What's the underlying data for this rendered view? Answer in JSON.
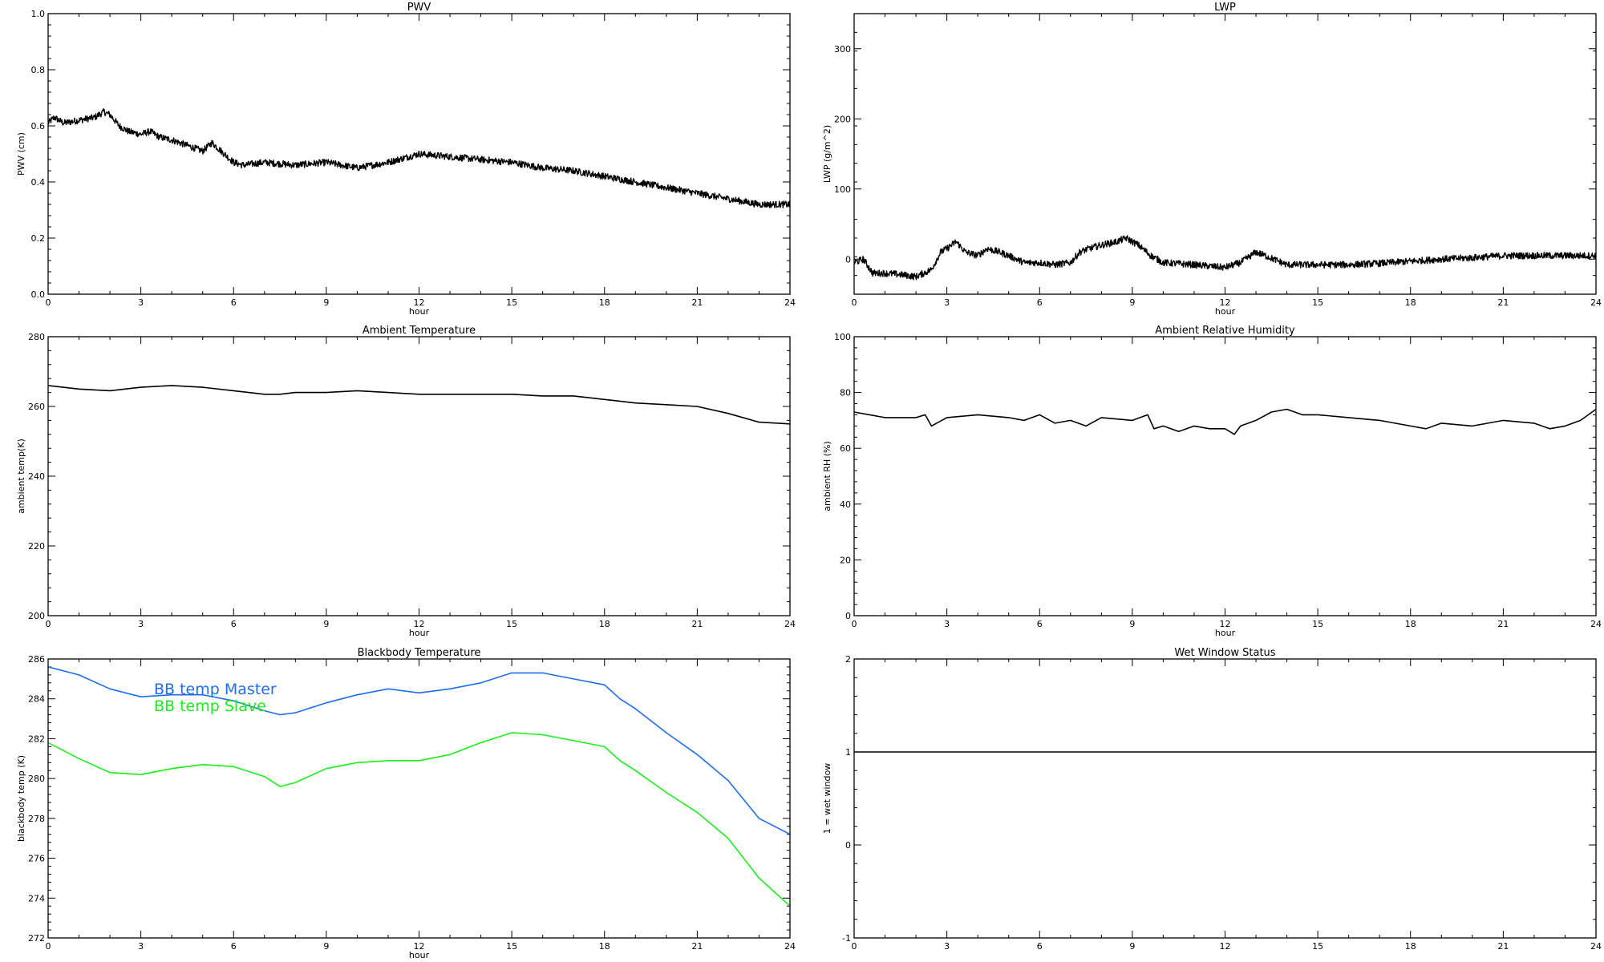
{
  "chart_data": [
    {
      "type": "line",
      "title": "PWV",
      "xlabel": "hour",
      "ylabel": "PWV (cm)",
      "xlim": [
        0,
        24
      ],
      "ylim": [
        0.0,
        1.0
      ],
      "xticks": [
        "0",
        "3",
        "6",
        "9",
        "12",
        "15",
        "18",
        "21",
        "24"
      ],
      "yticks": [
        "0.0",
        "0.2",
        "0.4",
        "0.6",
        "0.8",
        "1.0"
      ],
      "noisy": true,
      "series": [
        {
          "name": "",
          "color": "#000000",
          "x": [
            0,
            0.2,
            0.5,
            1.0,
            1.5,
            1.8,
            2.0,
            2.3,
            2.6,
            3.0,
            3.3,
            3.6,
            4.0,
            4.5,
            5.0,
            5.3,
            5.7,
            6.0,
            6.3,
            7.0,
            8.0,
            9.0,
            10.0,
            11.0,
            12.0,
            13.0,
            14.0,
            15.0,
            16.0,
            17.0,
            17.5,
            18.0,
            19.0,
            20.0,
            21.0,
            22.0,
            23.0,
            24.0
          ],
          "y": [
            0.61,
            0.63,
            0.61,
            0.62,
            0.63,
            0.65,
            0.64,
            0.6,
            0.58,
            0.57,
            0.58,
            0.56,
            0.55,
            0.53,
            0.51,
            0.54,
            0.5,
            0.47,
            0.46,
            0.47,
            0.46,
            0.47,
            0.45,
            0.47,
            0.5,
            0.49,
            0.48,
            0.47,
            0.45,
            0.44,
            0.43,
            0.42,
            0.4,
            0.38,
            0.36,
            0.34,
            0.32,
            0.32
          ]
        }
      ]
    },
    {
      "type": "line",
      "title": "LWP",
      "xlabel": "hour",
      "ylabel": "LWP (g/m^2)",
      "xlim": [
        0,
        24
      ],
      "ylim": [
        -50,
        350
      ],
      "xticks": [
        "0",
        "3",
        "6",
        "9",
        "12",
        "15",
        "18",
        "21",
        "24"
      ],
      "yticks": [
        "0",
        "100",
        "200",
        "300"
      ],
      "noisy": true,
      "series": [
        {
          "name": "",
          "color": "#000000",
          "x": [
            0,
            0.3,
            0.6,
            1.0,
            1.5,
            2.0,
            2.5,
            2.8,
            3.0,
            3.3,
            3.6,
            4.0,
            4.3,
            4.7,
            5.0,
            5.5,
            6.0,
            6.5,
            7.0,
            7.3,
            7.6,
            8.0,
            8.5,
            8.8,
            9.2,
            9.6,
            10.0,
            11.0,
            12.0,
            12.5,
            13.0,
            13.3,
            14.0,
            15.0,
            16.0,
            17.0,
            18.0,
            19.0,
            20.0,
            21.0,
            22.0,
            23.0,
            24.0
          ],
          "y": [
            -5,
            0,
            -20,
            -20,
            -22,
            -25,
            -15,
            10,
            15,
            25,
            10,
            5,
            15,
            10,
            5,
            -5,
            -5,
            -8,
            -5,
            10,
            15,
            20,
            25,
            30,
            20,
            5,
            -5,
            -8,
            -12,
            -5,
            10,
            5,
            -8,
            -8,
            -8,
            -6,
            -3,
            0,
            2,
            5,
            5,
            5,
            5
          ]
        }
      ]
    },
    {
      "type": "line",
      "title": "Ambient Temperature",
      "xlabel": "hour",
      "ylabel": "ambient temp(K)",
      "xlim": [
        0,
        24
      ],
      "ylim": [
        200,
        280
      ],
      "xticks": [
        "0",
        "3",
        "6",
        "9",
        "12",
        "15",
        "18",
        "21",
        "24"
      ],
      "yticks": [
        "200",
        "220",
        "240",
        "260",
        "280"
      ],
      "noisy": false,
      "series": [
        {
          "name": "",
          "color": "#000000",
          "x": [
            0,
            1.0,
            2.0,
            3.0,
            4.0,
            5.0,
            6.0,
            7.0,
            7.5,
            8.0,
            9.0,
            10.0,
            11.0,
            12.0,
            13.0,
            14.0,
            15.0,
            16.0,
            17.0,
            18.0,
            19.0,
            20.0,
            21.0,
            22.0,
            23.0,
            24.0
          ],
          "y": [
            266,
            265,
            264.5,
            265.5,
            266,
            265.5,
            264.5,
            263.5,
            263.5,
            264,
            264,
            264.5,
            264,
            263.5,
            263.5,
            263.5,
            263.5,
            263,
            263,
            262,
            261,
            260.5,
            260,
            258,
            255.5,
            255
          ]
        }
      ]
    },
    {
      "type": "line",
      "title": "Ambient Relative Humidity",
      "xlabel": "hour",
      "ylabel": "ambient RH (%)",
      "xlim": [
        0,
        24
      ],
      "ylim": [
        0,
        100
      ],
      "xticks": [
        "0",
        "3",
        "6",
        "9",
        "12",
        "15",
        "18",
        "21",
        "24"
      ],
      "yticks": [
        "0",
        "20",
        "40",
        "60",
        "80",
        "100"
      ],
      "noisy": false,
      "series": [
        {
          "name": "",
          "color": "#000000",
          "x": [
            0,
            0.5,
            1.0,
            2.0,
            2.3,
            2.5,
            3.0,
            4.0,
            5.0,
            5.5,
            6.0,
            6.5,
            7.0,
            7.5,
            8.0,
            9.0,
            9.5,
            9.7,
            10.0,
            10.5,
            11.0,
            11.5,
            12.0,
            12.3,
            12.5,
            13.0,
            13.5,
            14.0,
            14.5,
            15.0,
            16.0,
            17.0,
            18.0,
            18.5,
            19.0,
            20.0,
            21.0,
            22.0,
            22.5,
            23.0,
            23.5,
            24.0
          ],
          "y": [
            73,
            72,
            71,
            71,
            72,
            68,
            71,
            72,
            71,
            70,
            72,
            69,
            70,
            68,
            71,
            70,
            72,
            67,
            68,
            66,
            68,
            67,
            67,
            65,
            68,
            70,
            73,
            74,
            72,
            72,
            71,
            70,
            68,
            67,
            69,
            68,
            70,
            69,
            67,
            68,
            70,
            74
          ]
        }
      ]
    },
    {
      "type": "line",
      "title": "Blackbody Temperature",
      "xlabel": "hour",
      "ylabel": "blackbody temp (K)",
      "xlim": [
        0,
        24
      ],
      "ylim": [
        272,
        286
      ],
      "xticks": [
        "0",
        "3",
        "6",
        "9",
        "12",
        "15",
        "18",
        "21",
        "24"
      ],
      "yticks": [
        "272",
        "274",
        "276",
        "278",
        "280",
        "282",
        "284",
        "286"
      ],
      "noisy": false,
      "legend": "top-left",
      "series": [
        {
          "name": "BB temp Master",
          "color": "#1c6ef2",
          "x": [
            0,
            1.0,
            2.0,
            3.0,
            4.0,
            5.0,
            6.0,
            7.0,
            7.5,
            8.0,
            9.0,
            10.0,
            11.0,
            12.0,
            13.0,
            14.0,
            15.0,
            16.0,
            17.0,
            18.0,
            18.5,
            19.0,
            20.0,
            21.0,
            22.0,
            23.0,
            24.0
          ],
          "y": [
            285.6,
            285.2,
            284.5,
            284.1,
            284.2,
            284.2,
            283.9,
            283.4,
            283.2,
            283.3,
            283.8,
            284.2,
            284.5,
            284.3,
            284.5,
            284.8,
            285.3,
            285.3,
            285.0,
            284.7,
            284.0,
            283.5,
            282.3,
            281.2,
            279.9,
            278.0,
            277.2
          ]
        },
        {
          "name": "BB temp Slave",
          "color": "#19f019",
          "x": [
            0,
            1.0,
            2.0,
            3.0,
            4.0,
            5.0,
            6.0,
            7.0,
            7.5,
            8.0,
            9.0,
            10.0,
            11.0,
            12.0,
            13.0,
            14.0,
            15.0,
            16.0,
            17.0,
            18.0,
            18.5,
            19.0,
            20.0,
            21.0,
            22.0,
            23.0,
            24.0
          ],
          "y": [
            281.8,
            281.0,
            280.3,
            280.2,
            280.5,
            280.7,
            280.6,
            280.1,
            279.6,
            279.8,
            280.5,
            280.8,
            280.9,
            280.9,
            281.2,
            281.8,
            282.3,
            282.2,
            281.9,
            281.6,
            280.9,
            280.4,
            279.3,
            278.3,
            277.0,
            275.0,
            273.6
          ]
        }
      ]
    },
    {
      "type": "line",
      "title": "Wet Window Status",
      "xlabel": "",
      "ylabel": "1 = wet window",
      "xlim": [
        0,
        24
      ],
      "ylim": [
        -1,
        2
      ],
      "xticks": [
        "0",
        "3",
        "6",
        "9",
        "12",
        "15",
        "18",
        "21",
        "24"
      ],
      "yticks": [
        "-1",
        "0",
        "1",
        "2"
      ],
      "noisy": false,
      "series": [
        {
          "name": "",
          "color": "#000000",
          "x": [
            0,
            24
          ],
          "y": [
            1,
            1
          ]
        }
      ]
    }
  ]
}
